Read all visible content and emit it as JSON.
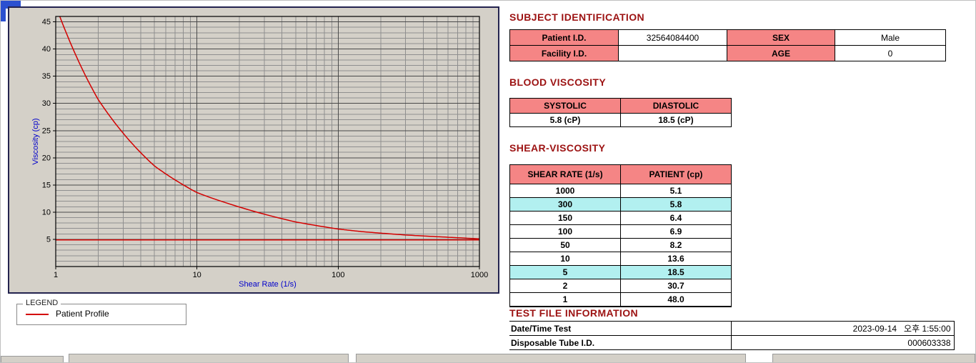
{
  "window": {
    "accent_blue": "#2b50d0"
  },
  "colors": {
    "heading": "#9c1212",
    "table_header_bg": "#f58585",
    "row_highlight_bg": "#b2f0f0"
  },
  "chart": {
    "legend_title": "LEGEND",
    "legend_entry": "Patient Profile"
  },
  "chart_data": {
    "type": "line",
    "title": "",
    "xlabel": "Shear Rate (1/s)",
    "ylabel": "Viscosity (cp)",
    "x_scale": "log",
    "xlim": [
      1,
      1000
    ],
    "ylim": [
      0,
      45
    ],
    "plot_ymax": 46,
    "x_ticks": [
      "1",
      "10",
      "100",
      "1000"
    ],
    "y_ticks": [
      "5",
      "10",
      "15",
      "20",
      "25",
      "30",
      "35",
      "40",
      "45"
    ],
    "grid": true,
    "grid_minor_color": "#8f8f8f",
    "grid_major_color": "#4a4a4a",
    "plot_bg": "#d4d0c8",
    "axis_label_color": "#0000cc",
    "series": [
      {
        "name": "Patient Profile",
        "color": "#d40000",
        "x": [
          1,
          2,
          5,
          10,
          50,
          100,
          150,
          300,
          1000
        ],
        "y": [
          48.0,
          30.7,
          18.5,
          13.6,
          8.2,
          6.9,
          6.4,
          5.8,
          5.1
        ]
      },
      {
        "name": "Baseline",
        "color": "#d40000",
        "x": [
          1,
          1000
        ],
        "y": [
          4.9,
          4.9
        ]
      }
    ]
  },
  "subject": {
    "title": "SUBJECT IDENTIFICATION",
    "rows": [
      {
        "label1": "Patient I.D.",
        "value1": "32564084400",
        "label2": "SEX",
        "value2": "Male"
      },
      {
        "label1": "Facility I.D.",
        "value1": "",
        "label2": "AGE",
        "value2": "0"
      }
    ]
  },
  "blood_viscosity": {
    "title": "BLOOD VISCOSITY",
    "headers": [
      "SYSTOLIC",
      "DIASTOLIC"
    ],
    "values": [
      "5.8 (cP)",
      "18.5 (cP)"
    ]
  },
  "shear_viscosity": {
    "title": "SHEAR-VISCOSITY",
    "headers": [
      "SHEAR RATE (1/s)",
      "PATIENT (cp)"
    ],
    "rows": [
      {
        "rate": "1000",
        "value": "5.1",
        "highlight": false
      },
      {
        "rate": "300",
        "value": "5.8",
        "highlight": true
      },
      {
        "rate": "150",
        "value": "6.4",
        "highlight": false
      },
      {
        "rate": "100",
        "value": "6.9",
        "highlight": false
      },
      {
        "rate": "50",
        "value": "8.2",
        "highlight": false
      },
      {
        "rate": "10",
        "value": "13.6",
        "highlight": false
      },
      {
        "rate": "5",
        "value": "18.5",
        "highlight": true
      },
      {
        "rate": "2",
        "value": "30.7",
        "highlight": false
      },
      {
        "rate": "1",
        "value": "48.0",
        "highlight": false
      }
    ]
  },
  "test_file": {
    "title": "TEST FILE INFORMATION",
    "rows": [
      {
        "label": "Date/Time Test",
        "value": "2023-09-14   오후 1:55:00"
      },
      {
        "label": "Disposable Tube I.D.",
        "value": "000603338"
      }
    ]
  }
}
